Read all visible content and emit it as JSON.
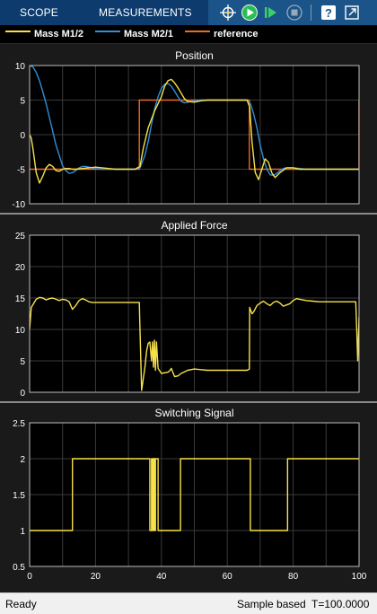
{
  "toolbar": {
    "tabs": [
      {
        "label": "SCOPE"
      },
      {
        "label": "MEASUREMENTS"
      }
    ],
    "icons": [
      "signal-select-icon",
      "run-icon",
      "step-forward-icon",
      "stop-icon",
      "help-icon",
      "undock-icon"
    ]
  },
  "legend": {
    "items": [
      {
        "label": "Mass M1/2",
        "color": "#f6e14b"
      },
      {
        "label": "Mass M2/1",
        "color": "#2f8fd8"
      },
      {
        "label": "reference",
        "color": "#ee6a22"
      }
    ]
  },
  "status": {
    "left": "Ready",
    "mode": "Sample based",
    "time": "T=100.0000"
  },
  "chart_data": [
    {
      "type": "line",
      "title": "Position",
      "xlim": [
        0,
        100
      ],
      "ylim": [
        -10,
        10
      ],
      "yticks": [
        "10",
        "5",
        "0",
        "-5",
        "-10"
      ],
      "ytick_values": [
        10,
        5,
        0,
        -5,
        -10
      ],
      "series": [
        {
          "name": "Mass M1/2",
          "color": "#f6e14b",
          "x": [
            0,
            0.5,
            1,
            2,
            3,
            4,
            5,
            6,
            7,
            8,
            9,
            10,
            11,
            12,
            13,
            14,
            16,
            18,
            20,
            22,
            24,
            26,
            28,
            30,
            32,
            33.5,
            34.5,
            36,
            38,
            40,
            41,
            42,
            43,
            44,
            45,
            46,
            47,
            48,
            50,
            52,
            54,
            56,
            58,
            60,
            62,
            64,
            66,
            66.8,
            67.5,
            68.5,
            69.5,
            70.5,
            71.5,
            72.5,
            73.5,
            74.5,
            76,
            78,
            80,
            82,
            84,
            86,
            88,
            90,
            92,
            94,
            96,
            98,
            100
          ],
          "y": [
            0,
            -0.5,
            -2,
            -5.5,
            -7,
            -6,
            -4.8,
            -4.3,
            -4.6,
            -5.2,
            -5.3,
            -5,
            -4.9,
            -4.9,
            -5,
            -5,
            -4.9,
            -4.8,
            -4.7,
            -4.8,
            -4.9,
            -5,
            -5,
            -5,
            -5,
            -4.6,
            -2,
            1,
            3.5,
            5.5,
            7,
            7.8,
            8,
            7.5,
            6.8,
            6,
            5.2,
            4.8,
            4.7,
            4.9,
            5,
            5,
            5,
            5,
            5,
            5,
            5,
            4,
            -1,
            -5.5,
            -6.5,
            -5,
            -3.5,
            -4,
            -5.5,
            -6.2,
            -5.5,
            -4.8,
            -4.8,
            -5,
            -5,
            -5,
            -5,
            -5,
            -5,
            -5,
            -5,
            -5,
            -5
          ]
        },
        {
          "name": "Mass M2/1",
          "color": "#2f8fd8",
          "x": [
            0,
            1,
            2,
            3,
            4,
            5,
            6,
            7,
            8,
            9,
            10,
            11,
            12,
            13,
            14,
            15,
            16,
            17,
            18,
            20,
            22,
            24,
            26,
            28,
            30,
            32,
            33.5,
            35,
            36,
            37,
            38,
            39,
            40,
            41,
            42,
            43,
            44,
            45,
            46,
            47,
            48,
            50,
            52,
            54,
            56,
            58,
            60,
            62,
            64,
            66,
            67,
            68,
            69,
            70,
            71,
            72,
            73,
            74,
            75,
            76,
            77,
            78,
            80,
            82,
            84,
            86,
            88,
            90,
            92,
            94,
            96,
            98,
            100
          ],
          "y": [
            10,
            9.8,
            9,
            7.8,
            6.2,
            4.5,
            2.5,
            0.5,
            -1.5,
            -3,
            -4.5,
            -5.2,
            -5.6,
            -5.5,
            -5.2,
            -4.8,
            -4.6,
            -4.6,
            -4.7,
            -4.9,
            -5,
            -5,
            -5,
            -5,
            -5,
            -5,
            -4.8,
            -3,
            -1,
            1.5,
            3.8,
            5.5,
            6.7,
            7.3,
            7.4,
            7,
            6.3,
            5.5,
            4.8,
            4.6,
            4.7,
            4.9,
            5,
            5,
            5,
            5,
            5,
            5,
            5,
            5,
            4.5,
            3,
            1,
            -1.5,
            -3.5,
            -5,
            -5.8,
            -5.9,
            -5.6,
            -5.2,
            -4.9,
            -4.8,
            -4.8,
            -4.9,
            -5,
            -5,
            -5,
            -5,
            -5,
            -5,
            -5,
            -5,
            -5
          ]
        },
        {
          "name": "reference",
          "color": "#ee6a22",
          "x": [
            0,
            33.3,
            33.3,
            66.7,
            66.7,
            100,
            100
          ],
          "y": [
            -5,
            -5,
            5,
            5,
            -5,
            -5,
            5
          ]
        }
      ]
    },
    {
      "type": "line",
      "title": "Applied Force",
      "xlim": [
        0,
        100
      ],
      "ylim": [
        0,
        25
      ],
      "yticks": [
        "25",
        "20",
        "15",
        "10",
        "5",
        "0"
      ],
      "ytick_values": [
        25,
        20,
        15,
        10,
        5,
        0
      ],
      "series": [
        {
          "name": "Applied Force",
          "color": "#f6e14b",
          "x": [
            0,
            0.5,
            2,
            3,
            4,
            5,
            6,
            7,
            8,
            9,
            10,
            11,
            12,
            13,
            14,
            15,
            16,
            17,
            18,
            19,
            20,
            22,
            24,
            26,
            28,
            30,
            32,
            33.3,
            33.4,
            34,
            35,
            35.5,
            36,
            36.5,
            37,
            37.3,
            37.6,
            37.9,
            38.2,
            38.5,
            39,
            40,
            42,
            42.5,
            43,
            44,
            45,
            46,
            48,
            50,
            52,
            54,
            56,
            58,
            60,
            62,
            64,
            66,
            66.7,
            66.8,
            67.5,
            68,
            69,
            70,
            71,
            72,
            73,
            74,
            75,
            76,
            77,
            78,
            79,
            80,
            81,
            82,
            84,
            86,
            88,
            90,
            92,
            94,
            96,
            98,
            99,
            99.3,
            99.6,
            100
          ],
          "y": [
            10,
            13.5,
            14.8,
            15.1,
            15,
            14.7,
            14.9,
            15,
            14.8,
            14.6,
            14.8,
            14.7,
            14.4,
            13.2,
            13.8,
            14.6,
            14.9,
            14.7,
            14.4,
            14.3,
            14.3,
            14.3,
            14.3,
            14.3,
            14.3,
            14.3,
            14.3,
            14.3,
            12,
            0.3,
            4,
            6.5,
            7.8,
            8,
            5,
            8,
            4,
            8.3,
            3.5,
            8,
            3.8,
            3,
            3.2,
            3.4,
            3.8,
            2.5,
            2.6,
            3,
            3.5,
            3.7,
            3.6,
            3.5,
            3.5,
            3.5,
            3.5,
            3.5,
            3.5,
            3.5,
            3.7,
            13.5,
            12.5,
            12.8,
            13.8,
            14.2,
            14.5,
            14.1,
            13.8,
            14.3,
            14.5,
            14.2,
            13.7,
            13.9,
            14.1,
            14.6,
            14.9,
            14.8,
            14.6,
            14.5,
            14.4,
            14.4,
            14.4,
            14.4,
            14.4,
            14.4,
            14.4,
            10,
            5,
            12
          ]
        }
      ]
    },
    {
      "type": "line",
      "title": "Switching Signal",
      "xlim": [
        0,
        100
      ],
      "ylim": [
        0.5,
        2.5
      ],
      "yticks": [
        "2.5",
        "2",
        "1.5",
        "1",
        "0.5"
      ],
      "ytick_values": [
        2.5,
        2,
        1.5,
        1,
        0.5
      ],
      "xticks": [
        "0",
        "20",
        "40",
        "60",
        "80",
        "100"
      ],
      "xtick_values": [
        0,
        20,
        40,
        60,
        80,
        100
      ],
      "series": [
        {
          "name": "Switching Signal",
          "color": "#f6e14b",
          "x": [
            0,
            13,
            13,
            36.5,
            36.5,
            37,
            37,
            37.3,
            37.3,
            37.6,
            37.6,
            37.9,
            37.9,
            38.2,
            38.2,
            39,
            39,
            45.8,
            45.8,
            67,
            67,
            78.3,
            78.3,
            100
          ],
          "y": [
            1,
            1,
            2,
            2,
            1,
            1,
            2,
            2,
            1,
            1,
            2,
            2,
            1,
            1,
            2,
            2,
            1,
            1,
            2,
            2,
            1,
            1,
            2,
            2
          ]
        }
      ]
    }
  ]
}
